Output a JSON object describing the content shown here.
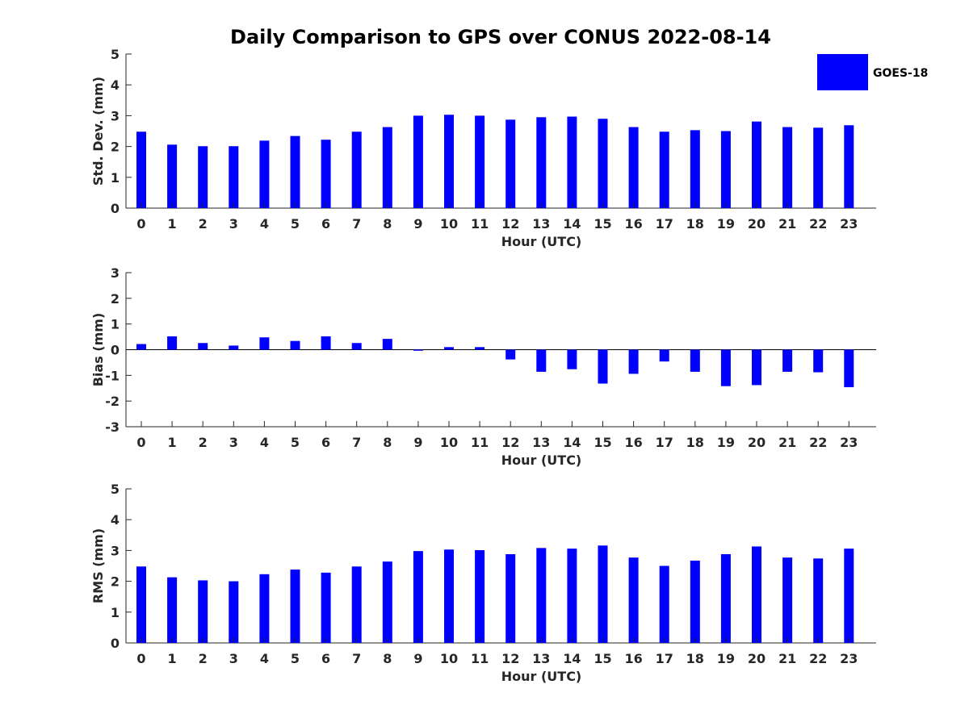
{
  "chart_data": {
    "title": "Daily Comparison to GPS over CONUS 2022-08-14",
    "legend": {
      "label": "GOES-18",
      "color": "#0000ff",
      "placement": "top-right"
    },
    "bar_color": "#0000ff",
    "categories": [
      "0",
      "1",
      "2",
      "3",
      "4",
      "5",
      "6",
      "7",
      "8",
      "9",
      "10",
      "11",
      "12",
      "13",
      "14",
      "15",
      "16",
      "17",
      "18",
      "19",
      "20",
      "21",
      "22",
      "23"
    ],
    "panels": [
      {
        "id": "std",
        "type": "bar",
        "xlabel": "Hour (UTC)",
        "ylabel": "Std. Dev. (mm)",
        "ylim": [
          0,
          5
        ],
        "yticks": [
          0,
          1,
          2,
          3,
          4,
          5
        ],
        "values": [
          2.48,
          2.06,
          2.01,
          2.01,
          2.19,
          2.34,
          2.22,
          2.48,
          2.63,
          3.0,
          3.03,
          3.0,
          2.87,
          2.95,
          2.97,
          2.9,
          2.63,
          2.48,
          2.53,
          2.5,
          2.81,
          2.63,
          2.61,
          2.69
        ]
      },
      {
        "id": "bias",
        "type": "bar",
        "xlabel": "Hour (UTC)",
        "ylabel": "Bias (mm)",
        "ylim": [
          -3,
          3
        ],
        "yticks": [
          -3,
          -2,
          -1,
          0,
          1,
          2,
          3
        ],
        "values": [
          0.22,
          0.52,
          0.26,
          0.16,
          0.48,
          0.34,
          0.52,
          0.26,
          0.42,
          -0.04,
          0.1,
          0.1,
          -0.38,
          -0.86,
          -0.76,
          -1.32,
          -0.94,
          -0.46,
          -0.86,
          -1.42,
          -1.38,
          -0.86,
          -0.88,
          -1.46
        ]
      },
      {
        "id": "rms",
        "type": "bar",
        "xlabel": "Hour (UTC)",
        "ylabel": "RMS (mm)",
        "ylim": [
          0,
          5
        ],
        "yticks": [
          0,
          1,
          2,
          3,
          4,
          5
        ],
        "values": [
          2.48,
          2.13,
          2.03,
          2.0,
          2.23,
          2.38,
          2.28,
          2.48,
          2.64,
          2.98,
          3.03,
          3.01,
          2.88,
          3.08,
          3.06,
          3.16,
          2.77,
          2.5,
          2.67,
          2.88,
          3.13,
          2.77,
          2.74,
          3.06
        ]
      }
    ]
  }
}
